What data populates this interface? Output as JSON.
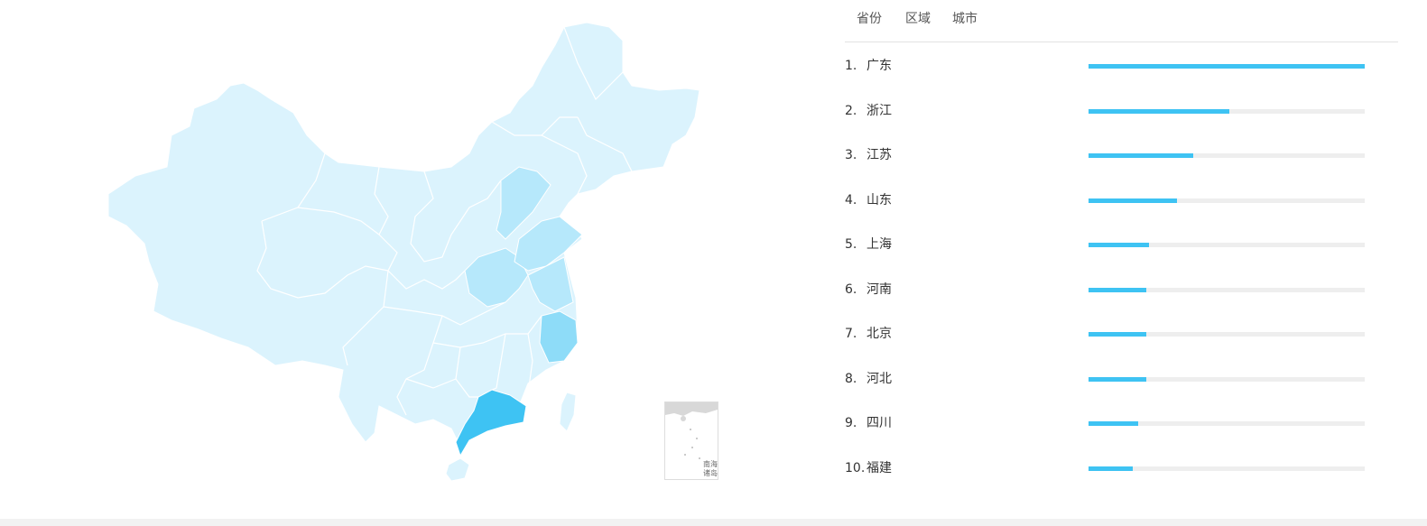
{
  "tabs": [
    {
      "label": "省份"
    },
    {
      "label": "区域"
    },
    {
      "label": "城市"
    }
  ],
  "map": {
    "inset_label_line1": "南海",
    "inset_label_line2": "诸岛",
    "color_base": "#dbf3fd",
    "color_light": "#b6e8fb",
    "color_mid": "#8edcf8",
    "color_max": "#3ec3f3",
    "border_color": "#ffffff"
  },
  "chart_data": {
    "type": "bar",
    "categories": [
      "广东",
      "浙江",
      "江苏",
      "山东",
      "上海",
      "河南",
      "北京",
      "河北",
      "四川",
      "福建"
    ],
    "ranks": [
      "1.",
      "2.",
      "3.",
      "4.",
      "5.",
      "6.",
      "7.",
      "8.",
      "9.",
      "10."
    ],
    "values": [
      100,
      51,
      38,
      32,
      22,
      21,
      21,
      21,
      18,
      16
    ],
    "bar_color": "#3ec3f3",
    "track_color": "#eeeeee"
  }
}
